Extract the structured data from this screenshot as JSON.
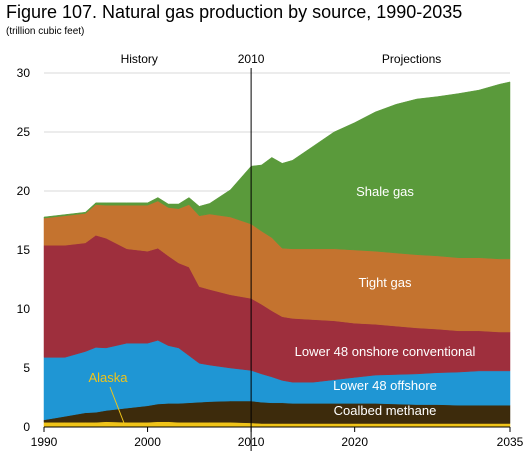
{
  "chart_data": {
    "type": "area",
    "title": "Figure 107. Natural gas production by source, 1990-2035",
    "subtitle": "(trillion cubic feet)",
    "annotations": {
      "history": "History",
      "divider": "2010",
      "projections": "Projections"
    },
    "x": [
      1990,
      1992,
      1994,
      1995,
      1996,
      1998,
      2000,
      2001,
      2002,
      2003,
      2004,
      2005,
      2006,
      2008,
      2010,
      2011,
      2012,
      2013,
      2014,
      2016,
      2018,
      2020,
      2022,
      2024,
      2026,
      2028,
      2030,
      2032,
      2034,
      2035
    ],
    "xlim": [
      1990,
      2035
    ],
    "ylim": [
      0,
      30
    ],
    "xticks": [
      1990,
      2000,
      2010,
      2020,
      2035
    ],
    "yticks": [
      0,
      5,
      10,
      15,
      20,
      25,
      30
    ],
    "stacked": true,
    "series": [
      {
        "name": "Alaska",
        "color": "#f0c419",
        "values": [
          0.4,
          0.4,
          0.4,
          0.4,
          0.45,
          0.4,
          0.4,
          0.45,
          0.45,
          0.4,
          0.4,
          0.4,
          0.4,
          0.4,
          0.35,
          0.3,
          0.3,
          0.3,
          0.3,
          0.3,
          0.3,
          0.3,
          0.3,
          0.3,
          0.3,
          0.3,
          0.3,
          0.3,
          0.3,
          0.3
        ]
      },
      {
        "name": "Coalbed methane",
        "color": "#3d2b0c",
        "values": [
          0.2,
          0.5,
          0.8,
          0.85,
          0.95,
          1.2,
          1.4,
          1.5,
          1.55,
          1.6,
          1.65,
          1.7,
          1.75,
          1.8,
          1.85,
          1.8,
          1.75,
          1.75,
          1.7,
          1.7,
          1.7,
          1.7,
          1.7,
          1.65,
          1.6,
          1.6,
          1.55,
          1.55,
          1.55,
          1.55
        ]
      },
      {
        "name": "Lower 48 offshore",
        "color": "#1f96d4",
        "values": [
          5.3,
          5.0,
          5.2,
          5.5,
          5.3,
          5.5,
          5.3,
          5.4,
          4.9,
          4.7,
          4.0,
          3.3,
          3.1,
          2.8,
          2.6,
          2.4,
          2.2,
          1.9,
          1.8,
          1.8,
          2.0,
          2.2,
          2.4,
          2.5,
          2.6,
          2.7,
          2.8,
          2.9,
          2.9,
          2.9
        ]
      },
      {
        "name": "Lower 48 onshore conventional",
        "color": "#9e2f3d",
        "values": [
          9.5,
          9.5,
          9.2,
          9.5,
          9.3,
          8.0,
          7.8,
          7.8,
          7.6,
          7.2,
          7.5,
          6.5,
          6.4,
          6.2,
          6.1,
          5.9,
          5.6,
          5.4,
          5.4,
          5.3,
          5.0,
          4.6,
          4.3,
          4.1,
          3.9,
          3.7,
          3.5,
          3.4,
          3.3,
          3.3
        ]
      },
      {
        "name": "Tight gas",
        "color": "#c4732f",
        "values": [
          2.3,
          2.5,
          2.5,
          2.6,
          2.8,
          3.7,
          3.9,
          4.0,
          4.1,
          4.6,
          5.3,
          6.0,
          6.4,
          6.6,
          6.3,
          6.2,
          6.2,
          5.8,
          5.9,
          6.0,
          6.1,
          6.2,
          6.2,
          6.2,
          6.2,
          6.2,
          6.2,
          6.2,
          6.2,
          6.2
        ]
      },
      {
        "name": "Shale gas",
        "color": "#5a9a3b",
        "values": [
          0.1,
          0.1,
          0.1,
          0.15,
          0.2,
          0.2,
          0.2,
          0.3,
          0.3,
          0.4,
          0.6,
          0.8,
          0.9,
          2.3,
          4.9,
          5.6,
          6.8,
          7.2,
          7.5,
          8.7,
          9.9,
          10.8,
          11.8,
          12.6,
          13.2,
          13.5,
          13.9,
          14.2,
          14.8,
          15.0
        ]
      }
    ]
  }
}
